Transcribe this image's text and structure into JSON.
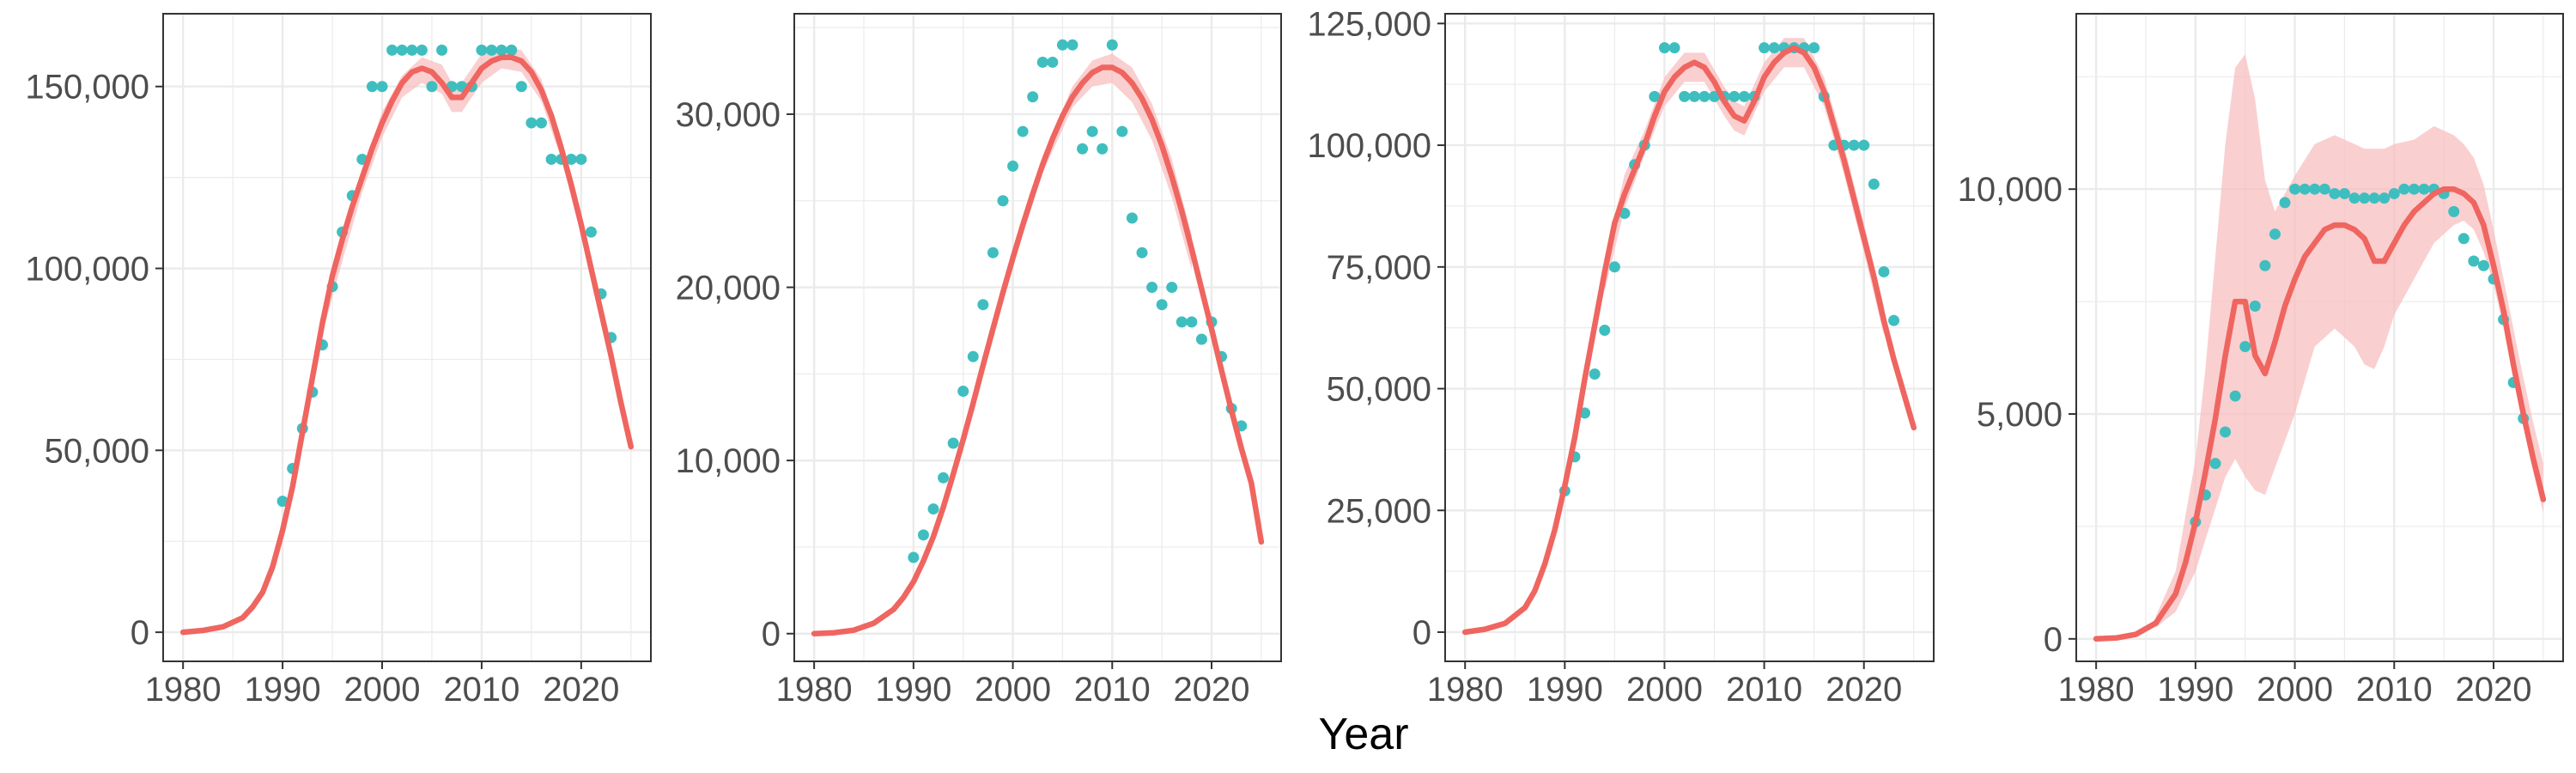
{
  "figure": {
    "xlabel": "Year"
  },
  "colors": {
    "line": "#EF6560",
    "ribbon": "#F8BFC0",
    "points": "#3FBEBF",
    "grid": "#EBEBEB",
    "frame": "#333333",
    "tick_text": "#4D4D4D"
  },
  "chart_data": [
    {
      "type": "scatter",
      "xlim": [
        1978,
        2027
      ],
      "ylim": [
        -8000,
        170000
      ],
      "x_ticks": [
        1980,
        1990,
        2000,
        2010,
        2020
      ],
      "x_tick_labels": [
        "1980",
        "1990",
        "2000",
        "2010",
        "2020"
      ],
      "y_ticks": [
        0,
        50000,
        100000,
        150000
      ],
      "y_tick_labels": [
        "0",
        "50,000",
        "100,000",
        "150,000"
      ],
      "observed": {
        "x": [
          1990,
          1991,
          1992,
          1993,
          1994,
          1995,
          1996,
          1997,
          1998,
          1999,
          2000,
          2001,
          2002,
          2003,
          2004,
          2005,
          2006,
          2007,
          2008,
          2009,
          2010,
          2011,
          2012,
          2013,
          2014,
          2015,
          2016,
          2017,
          2018,
          2019,
          2020,
          2021,
          2022,
          2023
        ],
        "y": [
          36000,
          45000,
          56000,
          66000,
          79000,
          95000,
          110000,
          120000,
          130000,
          150000,
          150000,
          160000,
          160000,
          160000,
          160000,
          150000,
          160000,
          150000,
          150000,
          150000,
          160000,
          160000,
          160000,
          160000,
          150000,
          140000,
          140000,
          130000,
          130000,
          130000,
          130000,
          110000,
          93000,
          81000
        ]
      },
      "fit": {
        "x": [
          1980,
          1982,
          1984,
          1986,
          1987,
          1988,
          1989,
          1990,
          1991,
          1992,
          1993,
          1994,
          1995,
          1996,
          1997,
          1998,
          1999,
          2000,
          2001,
          2002,
          2003,
          2004,
          2005,
          2006,
          2007,
          2008,
          2009,
          2010,
          2011,
          2012,
          2013,
          2014,
          2015,
          2016,
          2017,
          2018,
          2019,
          2020,
          2021,
          2022,
          2023,
          2024,
          2025
        ],
        "y": [
          0,
          500,
          1500,
          4000,
          7000,
          11000,
          18000,
          28000,
          40000,
          55000,
          70000,
          85000,
          98000,
          108000,
          117000,
          125000,
          133000,
          140000,
          146000,
          151000,
          154000,
          155000,
          154000,
          151000,
          147000,
          147000,
          151000,
          155000,
          157000,
          158000,
          158000,
          157000,
          154000,
          149000,
          142000,
          133000,
          123000,
          112000,
          100000,
          88000,
          76000,
          63000,
          51000
        ]
      },
      "ribbon": {
        "x": [
          1994,
          1996,
          1998,
          2000,
          2002,
          2004,
          2006,
          2007,
          2008,
          2010,
          2012,
          2014,
          2016,
          2018,
          2020,
          2022
        ],
        "lo": [
          82000,
          102000,
          121000,
          136000,
          147000,
          151000,
          148000,
          143000,
          143000,
          151000,
          155000,
          154000,
          146000,
          130000,
          109000,
          85000
        ],
        "hi": [
          88000,
          108000,
          127000,
          143000,
          153000,
          158000,
          156000,
          151000,
          151000,
          159000,
          161000,
          160000,
          152000,
          136000,
          115000,
          91000
        ]
      }
    },
    {
      "type": "scatter",
      "xlim": [
        1978,
        2027
      ],
      "ylim": [
        -1600,
        35800
      ],
      "x_ticks": [
        1980,
        1990,
        2000,
        2010,
        2020
      ],
      "x_tick_labels": [
        "1980",
        "1990",
        "2000",
        "2010",
        "2020"
      ],
      "y_ticks": [
        0,
        10000,
        20000,
        30000
      ],
      "y_tick_labels": [
        "0",
        "10,000",
        "20,000",
        "30,000"
      ],
      "observed": {
        "x": [
          1990,
          1991,
          1992,
          1993,
          1994,
          1995,
          1996,
          1997,
          1998,
          1999,
          2000,
          2001,
          2002,
          2003,
          2004,
          2005,
          2006,
          2007,
          2008,
          2009,
          2010,
          2011,
          2012,
          2013,
          2014,
          2015,
          2016,
          2017,
          2018,
          2019,
          2020,
          2021,
          2022,
          2023
        ],
        "y": [
          4400,
          5700,
          7200,
          9000,
          11000,
          14000,
          16000,
          19000,
          22000,
          25000,
          27000,
          29000,
          31000,
          33000,
          33000,
          34000,
          34000,
          28000,
          29000,
          28000,
          34000,
          29000,
          24000,
          22000,
          20000,
          19000,
          20000,
          18000,
          18000,
          17000,
          18000,
          16000,
          13000,
          12000
        ]
      },
      "fit": {
        "x": [
          1980,
          1982,
          1984,
          1986,
          1988,
          1989,
          1990,
          1991,
          1992,
          1993,
          1994,
          1995,
          1996,
          1997,
          1998,
          1999,
          2000,
          2001,
          2002,
          2003,
          2004,
          2005,
          2006,
          2007,
          2008,
          2009,
          2010,
          2011,
          2012,
          2013,
          2014,
          2015,
          2016,
          2017,
          2018,
          2019,
          2020,
          2021,
          2022,
          2023,
          2024,
          2025
        ],
        "y": [
          0,
          50,
          200,
          600,
          1400,
          2100,
          3000,
          4200,
          5600,
          7300,
          9200,
          11200,
          13300,
          15500,
          17600,
          19700,
          21700,
          23600,
          25400,
          27100,
          28600,
          29900,
          31000,
          31800,
          32400,
          32700,
          32700,
          32400,
          31800,
          30900,
          29700,
          28200,
          26400,
          24400,
          22200,
          19900,
          17600,
          15200,
          12900,
          10700,
          8700,
          5300
        ]
      },
      "ribbon": {
        "x": [
          2000,
          2003,
          2006,
          2008,
          2010,
          2012,
          2014,
          2016,
          2018
        ],
        "lo": [
          21200,
          26600,
          30400,
          31600,
          31800,
          30700,
          28500,
          25200,
          21000
        ],
        "hi": [
          22200,
          27600,
          31600,
          33100,
          33500,
          32700,
          30600,
          27400,
          23000
        ]
      }
    },
    {
      "type": "scatter",
      "xlim": [
        1978,
        2027
      ],
      "ylim": [
        -6000,
        127000
      ],
      "x_ticks": [
        1980,
        1990,
        2000,
        2010,
        2020
      ],
      "x_tick_labels": [
        "1980",
        "1990",
        "2000",
        "2010",
        "2020"
      ],
      "y_ticks": [
        0,
        25000,
        50000,
        75000,
        100000,
        125000
      ],
      "y_tick_labels": [
        "0",
        "25,000",
        "50,000",
        "75,000",
        "100,000",
        "125,000"
      ],
      "observed": {
        "x": [
          1990,
          1991,
          1992,
          1993,
          1994,
          1995,
          1996,
          1997,
          1998,
          1999,
          2000,
          2001,
          2002,
          2003,
          2004,
          2005,
          2006,
          2007,
          2008,
          2009,
          2010,
          2011,
          2012,
          2013,
          2014,
          2015,
          2016,
          2017,
          2018,
          2019,
          2020,
          2021,
          2022,
          2023
        ],
        "y": [
          29000,
          36000,
          45000,
          53000,
          62000,
          75000,
          86000,
          96000,
          100000,
          110000,
          120000,
          120000,
          110000,
          110000,
          110000,
          110000,
          110000,
          110000,
          110000,
          110000,
          120000,
          120000,
          120000,
          120000,
          120000,
          120000,
          110000,
          100000,
          100000,
          100000,
          100000,
          92000,
          74000,
          64000
        ]
      },
      "fit": {
        "x": [
          1980,
          1982,
          1984,
          1986,
          1987,
          1988,
          1989,
          1990,
          1991,
          1992,
          1993,
          1994,
          1995,
          1996,
          1997,
          1998,
          1999,
          2000,
          2001,
          2002,
          2003,
          2004,
          2005,
          2006,
          2007,
          2008,
          2009,
          2010,
          2011,
          2012,
          2013,
          2014,
          2015,
          2016,
          2017,
          2018,
          2019,
          2020,
          2021,
          2022,
          2023,
          2024,
          2025
        ],
        "y": [
          0,
          600,
          1800,
          5000,
          8500,
          14000,
          21000,
          30000,
          40000,
          52000,
          63000,
          74000,
          84000,
          90000,
          95000,
          100000,
          106000,
          111000,
          114000,
          116000,
          117000,
          116000,
          113000,
          109000,
          106000,
          105000,
          109000,
          114000,
          117000,
          119000,
          120000,
          119000,
          116000,
          111000,
          104000,
          97000,
          89000,
          81000,
          73000,
          64000,
          56000,
          49000,
          42000
        ]
      },
      "ribbon": {
        "x": [
          1994,
          1996,
          1998,
          2000,
          2002,
          2004,
          2006,
          2007,
          2008,
          2010,
          2012,
          2014,
          2016,
          2018,
          2020,
          2022
        ],
        "lo": [
          70000,
          87000,
          98000,
          108000,
          113000,
          113000,
          106000,
          103000,
          102000,
          111000,
          116000,
          116000,
          108000,
          94000,
          78000,
          61000
        ],
        "hi": [
          77000,
          94000,
          103000,
          114000,
          119000,
          119000,
          112000,
          109000,
          108000,
          117000,
          122000,
          122000,
          114000,
          100000,
          84000,
          67000
        ]
      }
    },
    {
      "type": "scatter",
      "xlim": [
        1978,
        2027
      ],
      "ylim": [
        -500,
        13900
      ],
      "x_ticks": [
        1980,
        1990,
        2000,
        2010,
        2020
      ],
      "x_tick_labels": [
        "1980",
        "1990",
        "2000",
        "2010",
        "2020"
      ],
      "y_ticks": [
        0,
        5000,
        10000
      ],
      "y_tick_labels": [
        "0",
        "5,000",
        "10,000"
      ],
      "observed": {
        "x": [
          1990,
          1991,
          1992,
          1993,
          1994,
          1995,
          1996,
          1997,
          1998,
          1999,
          2000,
          2001,
          2002,
          2003,
          2004,
          2005,
          2006,
          2007,
          2008,
          2009,
          2010,
          2011,
          2012,
          2013,
          2014,
          2015,
          2016,
          2017,
          2018,
          2019,
          2020,
          2021,
          2022,
          2023
        ],
        "y": [
          2600,
          3200,
          3900,
          4600,
          5400,
          6500,
          7400,
          8300,
          9000,
          9700,
          10000,
          10000,
          10000,
          10000,
          9900,
          9900,
          9800,
          9800,
          9800,
          9800,
          9900,
          10000,
          10000,
          10000,
          10000,
          9900,
          9500,
          8900,
          8400,
          8300,
          8000,
          7100,
          5700,
          4900
        ]
      },
      "fit": {
        "x": [
          1980,
          1982,
          1984,
          1986,
          1988,
          1989,
          1990,
          1991,
          1992,
          1993,
          1994,
          1995,
          1996,
          1997,
          1998,
          1999,
          2000,
          2001,
          2002,
          2003,
          2004,
          2005,
          2006,
          2007,
          2008,
          2009,
          2010,
          2011,
          2012,
          2013,
          2014,
          2015,
          2016,
          2017,
          2018,
          2019,
          2020,
          2021,
          2022,
          2023,
          2024,
          2025
        ],
        "y": [
          0,
          20,
          100,
          350,
          1000,
          1700,
          2600,
          3700,
          4900,
          6300,
          7500,
          7500,
          6300,
          5900,
          6600,
          7400,
          8000,
          8500,
          8800,
          9100,
          9200,
          9200,
          9100,
          8900,
          8400,
          8400,
          8800,
          9200,
          9500,
          9700,
          9900,
          10000,
          10000,
          9900,
          9700,
          9200,
          8300,
          7300,
          6100,
          5000,
          4000,
          3100
        ]
      },
      "ribbon": {
        "x": [
          1986,
          1988,
          1990,
          1991,
          1992,
          1993,
          1994,
          1995,
          1996,
          1997,
          1998,
          2000,
          2002,
          2004,
          2006,
          2007,
          2008,
          2009,
          2010,
          2012,
          2014,
          2015,
          2016,
          2017,
          2018,
          2019,
          2020,
          2021,
          2022,
          2023,
          2024,
          2025
        ],
        "lo": [
          250,
          600,
          1500,
          2200,
          2900,
          3600,
          4000,
          3600,
          3300,
          3200,
          3800,
          5000,
          6500,
          6900,
          6500,
          6100,
          6000,
          6500,
          7200,
          8000,
          8800,
          9000,
          9200,
          9300,
          9100,
          8600,
          7900,
          6900,
          5800,
          4700,
          3700,
          2800
        ],
        "hi": [
          500,
          1500,
          4000,
          6000,
          8500,
          11000,
          12700,
          13000,
          12000,
          10200,
          9500,
          10300,
          11000,
          11200,
          11000,
          10900,
          10900,
          10900,
          11000,
          11100,
          11400,
          11300,
          11200,
          11000,
          10700,
          10100,
          9100,
          8000,
          6900,
          5800,
          4800,
          3900
        ]
      }
    }
  ]
}
